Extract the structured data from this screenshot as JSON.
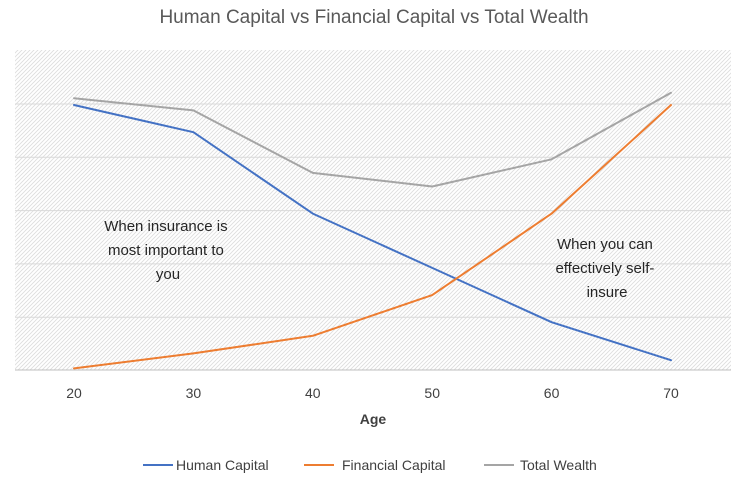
{
  "chart_data": {
    "type": "line",
    "title": "Human Capital vs Financial Capital vs Total Wealth",
    "xlabel": "Age",
    "ylabel": "",
    "categories": [
      "20",
      "30",
      "40",
      "50",
      "60",
      "70"
    ],
    "ylim": [
      0,
      100
    ],
    "grid": true,
    "legend": "bottom",
    "series": [
      {
        "name": "Human Capital",
        "color": "#4472C4",
        "values": [
          100,
          90,
          60,
          40,
          20,
          6
        ]
      },
      {
        "name": "Financial Capital",
        "color": "#ED7D31",
        "values": [
          3,
          8.5,
          15,
          30,
          60,
          100
        ]
      },
      {
        "name": "Total Wealth",
        "color": "#A5A5A5",
        "values": [
          102.5,
          98,
          75,
          70,
          80,
          104.5
        ]
      }
    ],
    "annotations": [
      {
        "lines": [
          "When insurance is",
          "most important to",
          "you"
        ]
      },
      {
        "lines": [
          "When you can",
          "effectively self-",
          "insure"
        ]
      }
    ]
  }
}
